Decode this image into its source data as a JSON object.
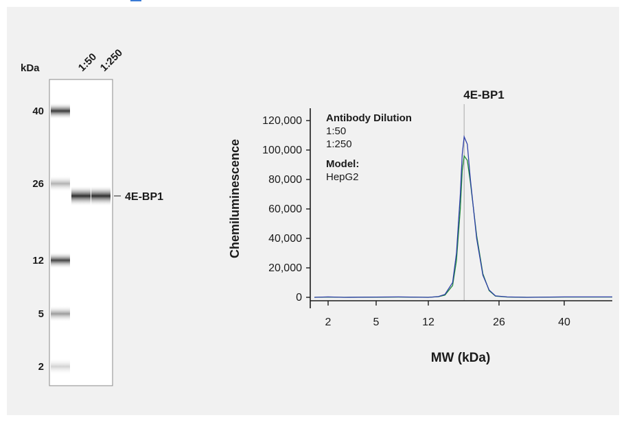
{
  "blot": {
    "kda_label": "kDa",
    "lane_labels": [
      "1:50",
      "1:250"
    ],
    "markers": [
      {
        "kda": "40",
        "intensity": 0.9
      },
      {
        "kda": "26",
        "intensity": 0.35
      },
      {
        "kda": "12",
        "intensity": 0.85
      },
      {
        "kda": "5",
        "intensity": 0.45
      },
      {
        "kda": "2",
        "intensity": 0.2
      }
    ],
    "band_label": "4E-BP1",
    "band_marker_kda": "21",
    "colors": {
      "background": "#f1f1f1",
      "band": "#1a1a1a"
    }
  },
  "chart_data": {
    "type": "line",
    "peak_label": "4E-BP1",
    "ylabel": "Chemiluminescence",
    "xlabel": "MW (kDa)",
    "x_ticks": [
      "2",
      "5",
      "12",
      "26",
      "40"
    ],
    "y_ticks": [
      "0",
      "20,000",
      "40,000",
      "60,000",
      "80,000",
      "100,000",
      "120,000"
    ],
    "ylim": [
      0,
      120000
    ],
    "legend": {
      "title": "Antibody Dilution",
      "entries": [
        {
          "label": "1:50",
          "color": "#2e3fa8"
        },
        {
          "label": "1:250",
          "color": "#1f8a3a"
        }
      ],
      "model_title": "Model:",
      "model_value": "HepG2"
    },
    "series": [
      {
        "name": "1:50",
        "color": "#2e3fa8",
        "x": [
          1.5,
          2,
          3,
          5,
          8,
          12,
          14,
          16,
          18,
          19,
          20,
          20.5,
          21,
          21.5,
          22,
          23,
          24,
          25,
          26,
          28,
          32,
          40,
          50
        ],
        "values": [
          0,
          300,
          0,
          200,
          300,
          0,
          500,
          2000,
          10000,
          30000,
          70000,
          97000,
          109000,
          104000,
          80000,
          40000,
          15000,
          5000,
          1000,
          300,
          0,
          300,
          300
        ]
      },
      {
        "name": "1:250",
        "color": "#1f8a3a",
        "x": [
          1.5,
          2,
          3,
          5,
          8,
          12,
          14,
          16,
          18,
          19,
          20,
          20.5,
          21,
          21.5,
          22,
          23,
          24,
          25,
          26,
          28,
          32,
          40,
          50
        ],
        "values": [
          0,
          200,
          0,
          100,
          200,
          0,
          400,
          1500,
          8000,
          25000,
          60000,
          86000,
          96000,
          93000,
          78000,
          42000,
          16000,
          4500,
          800,
          200,
          0,
          200,
          200
        ]
      }
    ],
    "peak_line_kda": 21,
    "colors": {
      "peak_line": "#b5b5b5",
      "axis": "#1a1a1a"
    }
  }
}
